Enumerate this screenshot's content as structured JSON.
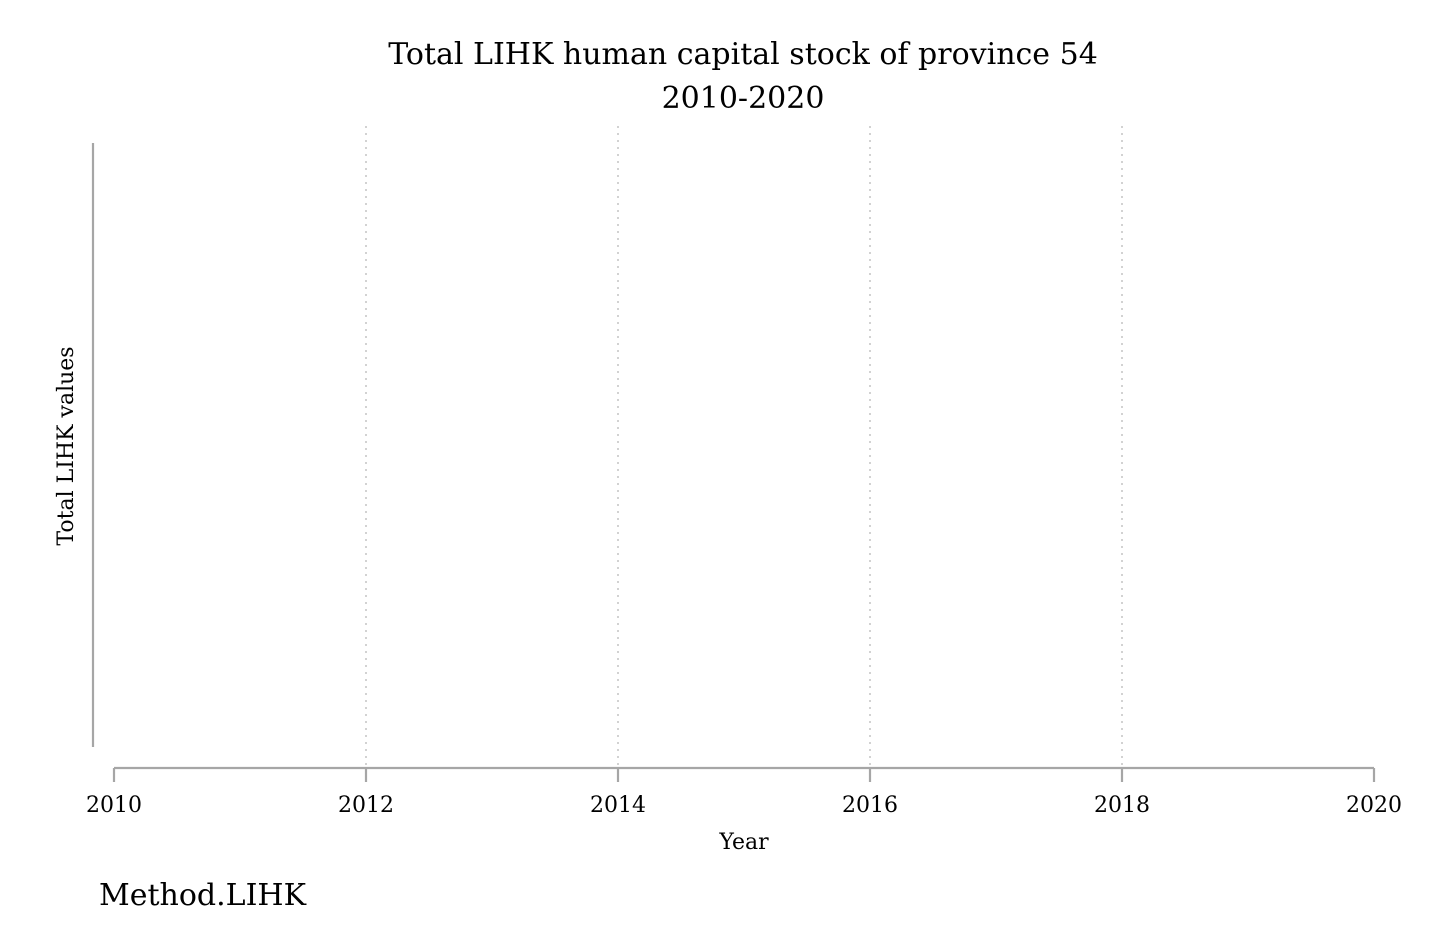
{
  "chart_data": {
    "type": "line",
    "title": "Total LIHK human capital stock of province 54",
    "subtitle": "2010-2020",
    "xlabel": "Year",
    "ylabel": "Total LIHK values",
    "x_ticks": [
      "2010",
      "2012",
      "2014",
      "2016",
      "2018",
      "2020"
    ],
    "xlim": [
      2010,
      2020
    ],
    "grid": "vertical dotted gridlines",
    "series": [],
    "caption": "Method.LIHK"
  }
}
